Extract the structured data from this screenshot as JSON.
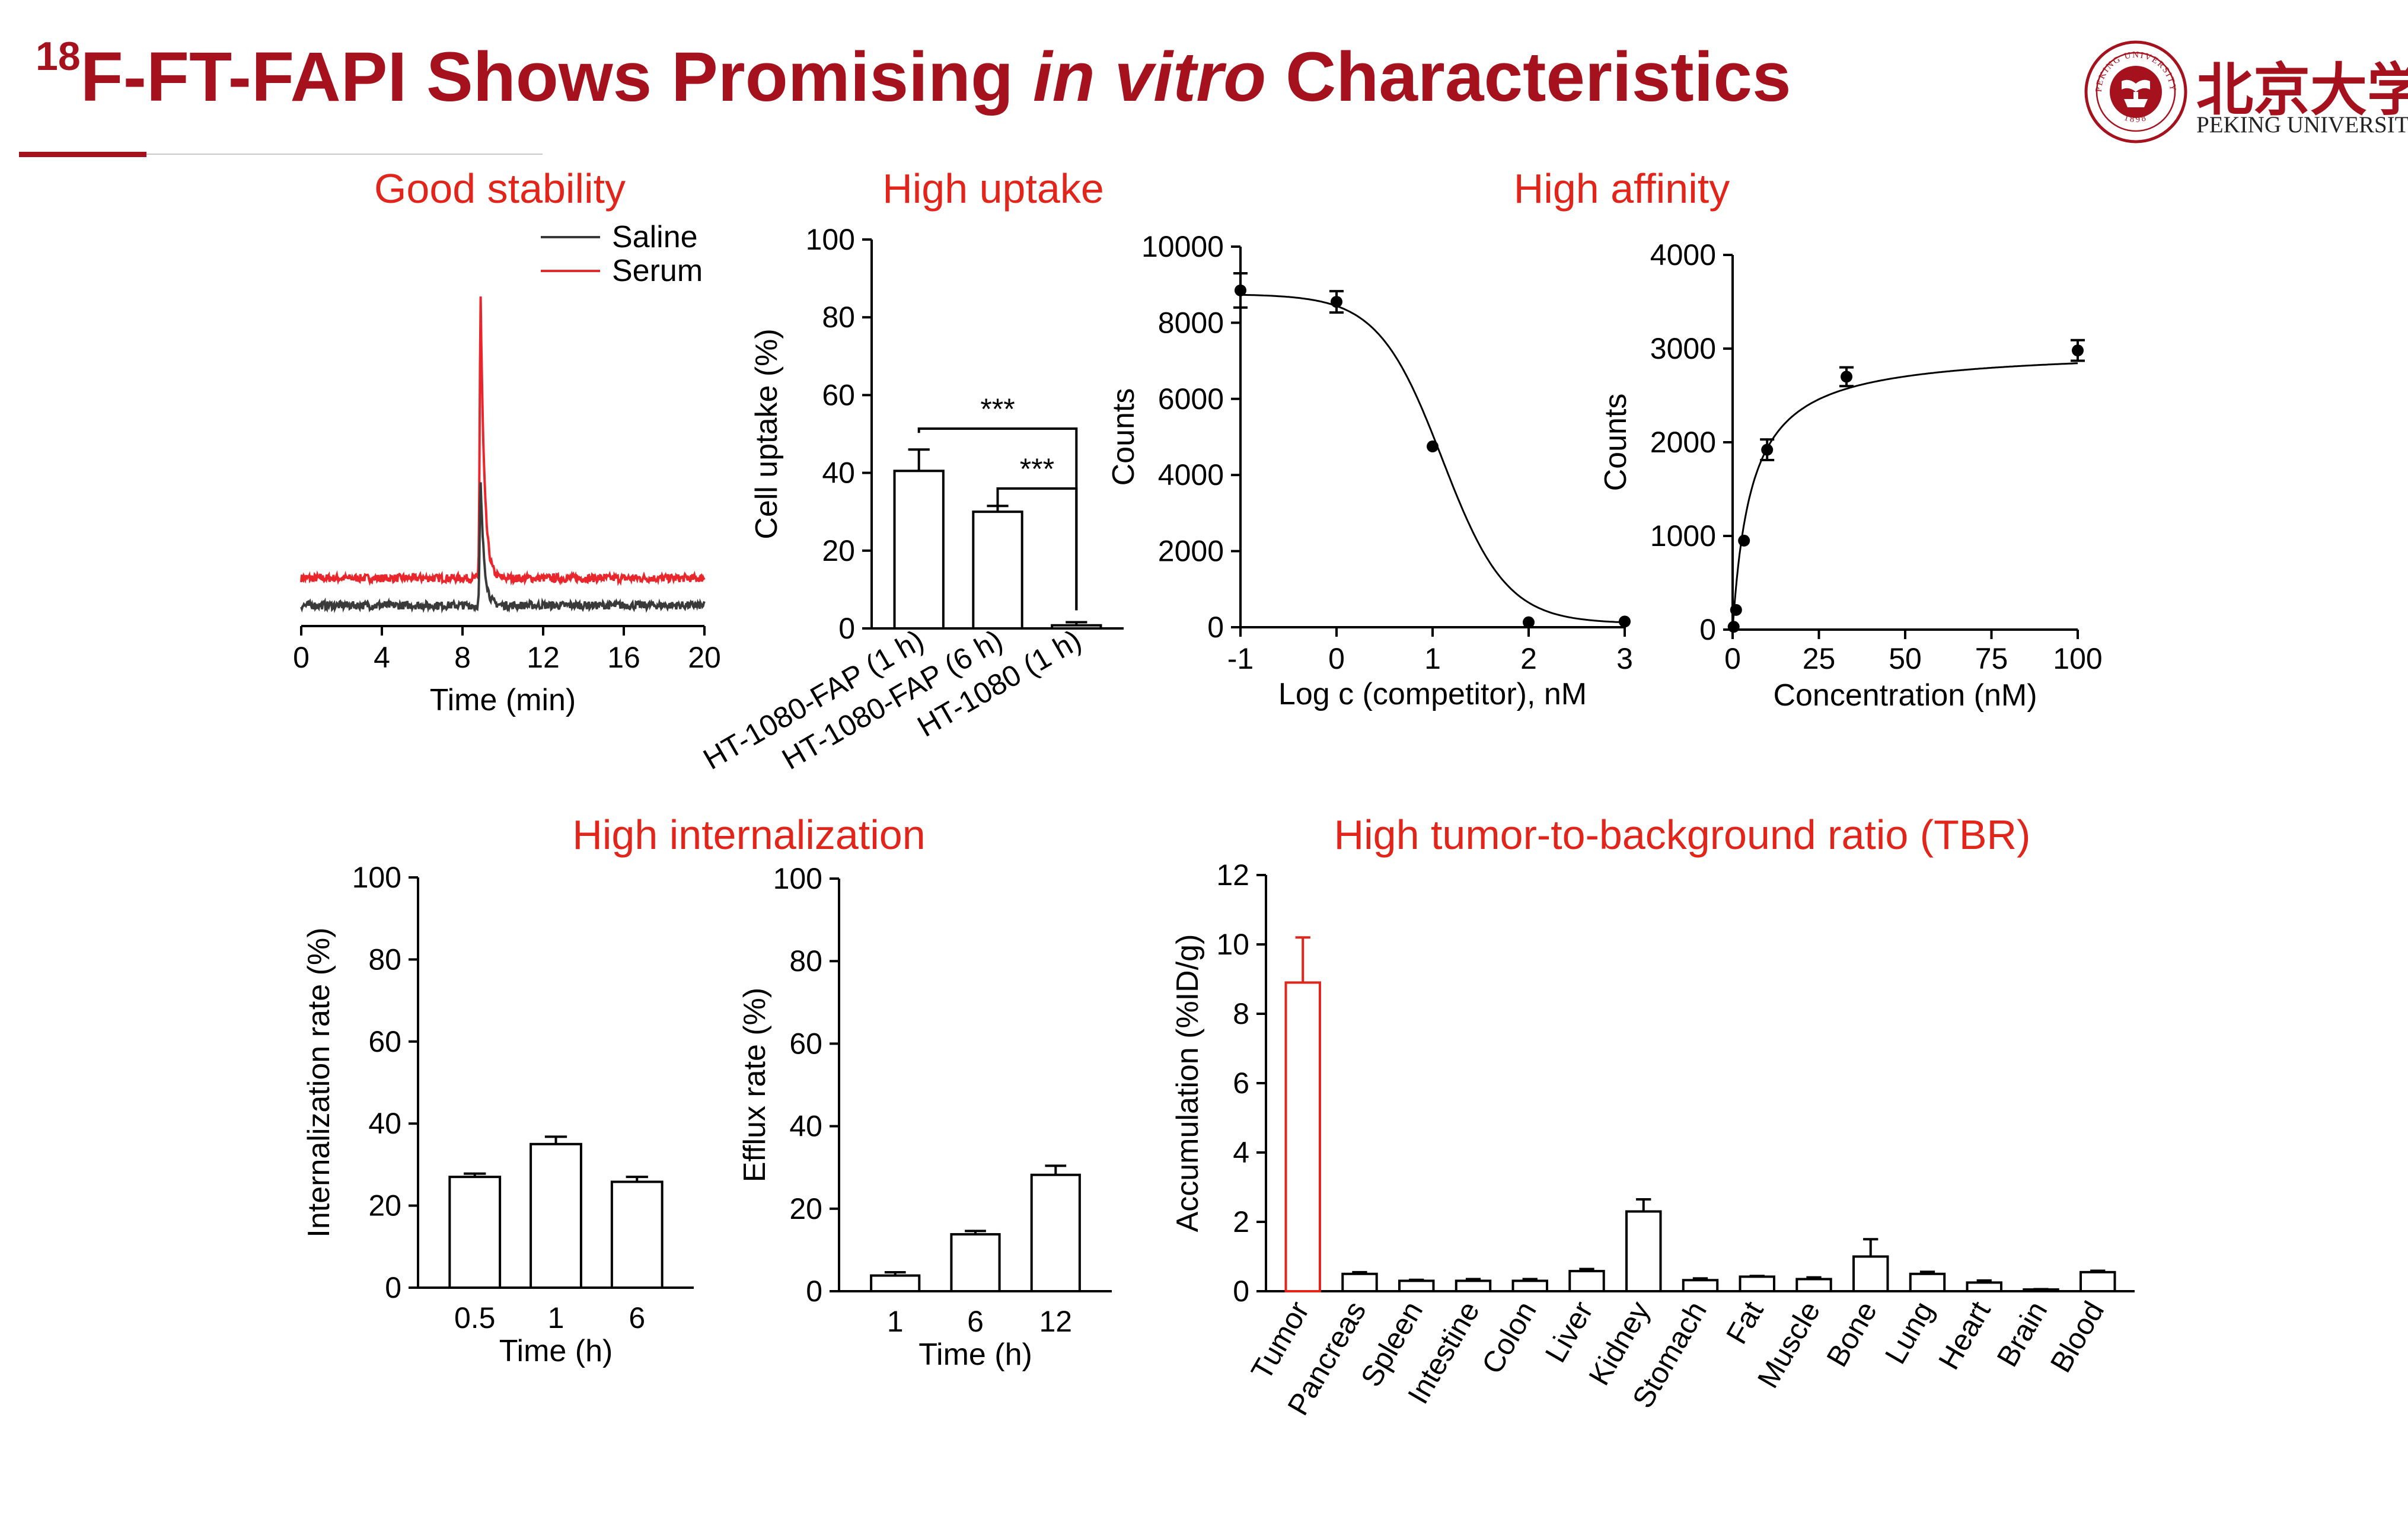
{
  "slide": {
    "title_sup": "18",
    "title_pre": "F-FT-FAPI Shows Promising ",
    "title_italic": "in vitro",
    "title_post": " Characteristics",
    "logo_cn": "北京大学",
    "logo_en": "PEKING UNIVERSITY",
    "logo_seal_text": "PEKING UNIVERSITY",
    "logo_seal_year": "1898",
    "accent_color": "#a5121d",
    "heading_color": "#e1251b"
  },
  "headings": {
    "stability": "Good stability",
    "uptake": "High uptake",
    "affinity": "High affinity",
    "internalization": "High internalization",
    "tbr": "High tumor-to-background ratio (TBR)"
  },
  "chart_data": [
    {
      "id": "stability",
      "type": "line",
      "xlabel": "Time (min)",
      "ylabel": "",
      "xlim": [
        0,
        20
      ],
      "xticks": [
        0,
        4,
        8,
        12,
        16,
        20
      ],
      "y_axis_shown": false,
      "legend": "top-right",
      "series": [
        {
          "name": "Saline",
          "color": "#3a3a3a",
          "baseline": 0.35,
          "peak_time": 8.9,
          "peak_height": 3.8
        },
        {
          "name": "Serum",
          "color": "#e8262b",
          "baseline": 1.2,
          "peak_time": 8.9,
          "peak_height": 8.8
        }
      ]
    },
    {
      "id": "uptake",
      "type": "bar",
      "ylabel": "Cell uptake (%)",
      "ylim": [
        0,
        100
      ],
      "yticks": [
        0,
        20,
        40,
        60,
        80,
        100
      ],
      "categories": [
        "HT-1080-FAP (1 h)",
        "HT-1080-FAP (6 h)",
        "HT-1080 (1 h)"
      ],
      "values": [
        40.5,
        30,
        0.8
      ],
      "errors": [
        5.5,
        1.5,
        0.8
      ],
      "significance": [
        {
          "from": 0,
          "to": 2,
          "label": "***"
        },
        {
          "from": 1,
          "to": 2,
          "label": "***"
        }
      ]
    },
    {
      "id": "competition",
      "type": "scatter",
      "xlabel": "Log c (competitor), nM",
      "ylabel": "Counts",
      "xlim": [
        -1,
        3
      ],
      "ylim": [
        0,
        10000
      ],
      "xticks": [
        -1,
        0,
        1,
        2,
        3
      ],
      "yticks": [
        0,
        2000,
        4000,
        6000,
        8000,
        10000
      ],
      "fit": {
        "type": "sigmoid",
        "top": 8750,
        "bottom": 100,
        "log_ic50": 1.1,
        "hill": -1.3
      },
      "points": [
        {
          "x": -1,
          "y": 8850,
          "err": 450
        },
        {
          "x": 0,
          "y": 8550,
          "err": 280
        },
        {
          "x": 1,
          "y": 4750,
          "err": 0
        },
        {
          "x": 2,
          "y": 130,
          "err": 0
        },
        {
          "x": 3,
          "y": 150,
          "err": 0
        }
      ]
    },
    {
      "id": "saturation",
      "type": "scatter",
      "xlabel": "Concentration (nM)",
      "ylabel": "Counts",
      "xlim": [
        0,
        100
      ],
      "ylim": [
        0,
        4000
      ],
      "xticks": [
        0,
        25,
        50,
        75,
        100
      ],
      "yticks": [
        0,
        1000,
        2000,
        3000,
        4000
      ],
      "fit": {
        "type": "one-site",
        "bmax": 3000,
        "kd": 5.5
      },
      "points": [
        {
          "x": 0.3,
          "y": 30,
          "err": 0
        },
        {
          "x": 1,
          "y": 210,
          "err": 0
        },
        {
          "x": 3.3,
          "y": 950,
          "err": 0
        },
        {
          "x": 10,
          "y": 1920,
          "err": 110
        },
        {
          "x": 33,
          "y": 2700,
          "err": 100
        },
        {
          "x": 100,
          "y": 2980,
          "err": 110
        }
      ]
    },
    {
      "id": "internalization",
      "type": "bar",
      "xlabel": "Time (h)",
      "ylabel": "Internalization rate (%)",
      "ylim": [
        0,
        100
      ],
      "yticks": [
        0,
        20,
        40,
        60,
        80,
        100
      ],
      "categories": [
        "0.5",
        "1",
        "6"
      ],
      "values": [
        27,
        35,
        25.8
      ],
      "errors": [
        0.8,
        1.8,
        1.2
      ]
    },
    {
      "id": "efflux",
      "type": "bar",
      "xlabel": "Time (h)",
      "ylabel": "Efflux rate (%)",
      "ylim": [
        0,
        100
      ],
      "yticks": [
        0,
        20,
        40,
        60,
        80,
        100
      ],
      "categories": [
        "1",
        "6",
        "12"
      ],
      "values": [
        3.8,
        13.8,
        28.2
      ],
      "errors": [
        0.8,
        0.8,
        2.2
      ]
    },
    {
      "id": "biodistribution",
      "type": "bar",
      "ylabel": "Accumulation (%ID/g)",
      "ylim": [
        0,
        12
      ],
      "yticks": [
        0,
        2,
        4,
        6,
        8,
        10,
        12
      ],
      "categories": [
        "Tumor",
        "Pancreas",
        "Spleen",
        "Intestine",
        "Colon",
        "Liver",
        "Kidney",
        "Stomach",
        "Fat",
        "Muscle",
        "Bone",
        "Lung",
        "Heart",
        "Brain",
        "Blood"
      ],
      "values": [
        8.9,
        0.5,
        0.3,
        0.3,
        0.3,
        0.58,
        2.3,
        0.32,
        0.42,
        0.35,
        1.0,
        0.5,
        0.25,
        0.05,
        0.55
      ],
      "errors": [
        1.3,
        0.05,
        0.03,
        0.05,
        0.05,
        0.06,
        0.35,
        0.05,
        0.02,
        0.05,
        0.5,
        0.06,
        0.06,
        0.01,
        0.04
      ],
      "highlight_color": "#e1251b"
    }
  ]
}
